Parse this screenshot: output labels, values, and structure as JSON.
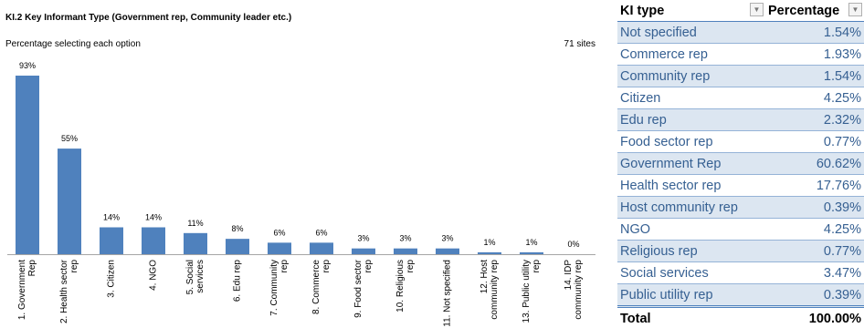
{
  "chart_data": {
    "type": "bar",
    "title": "KI.2 Key Informant Type (Government rep, Community leader etc.)",
    "subtitle": "Percentage selecting each option",
    "annotation": "71 sites",
    "categories": [
      "1. Government Rep",
      "2. Health sector rep",
      "3. Citizen",
      "4. NGO",
      "5. Social services",
      "6. Edu rep",
      "7. Community rep",
      "8. Commerce rep",
      "9. Food sector rep",
      "10. Religious rep",
      "11. Not specified",
      "12. Host community rep",
      "13. Public utility rep",
      "14. IDP community rep"
    ],
    "values": [
      93,
      55,
      14,
      14,
      11,
      8,
      6,
      6,
      3,
      3,
      3,
      1,
      1,
      0
    ],
    "value_labels": [
      "93%",
      "55%",
      "14%",
      "14%",
      "11%",
      "8%",
      "6%",
      "6%",
      "3%",
      "3%",
      "3%",
      "1%",
      "1%",
      "0%"
    ],
    "color": "#4f81bd"
  },
  "table": {
    "header": [
      "KI type",
      "Percentage"
    ],
    "rows": [
      [
        "Not specified",
        "1.54%"
      ],
      [
        "Commerce rep",
        "1.93%"
      ],
      [
        "Community rep",
        "1.54%"
      ],
      [
        "Citizen",
        "4.25%"
      ],
      [
        "Edu rep",
        "2.32%"
      ],
      [
        "Food sector rep",
        "0.77%"
      ],
      [
        "Government Rep",
        "60.62%"
      ],
      [
        "Health sector rep",
        "17.76%"
      ],
      [
        "Host community rep",
        "0.39%"
      ],
      [
        "NGO",
        "4.25%"
      ],
      [
        "Religious rep",
        "0.77%"
      ],
      [
        "Social services",
        "3.47%"
      ],
      [
        "Public utility rep",
        "0.39%"
      ]
    ],
    "total": [
      "Total",
      "100.00%"
    ]
  }
}
